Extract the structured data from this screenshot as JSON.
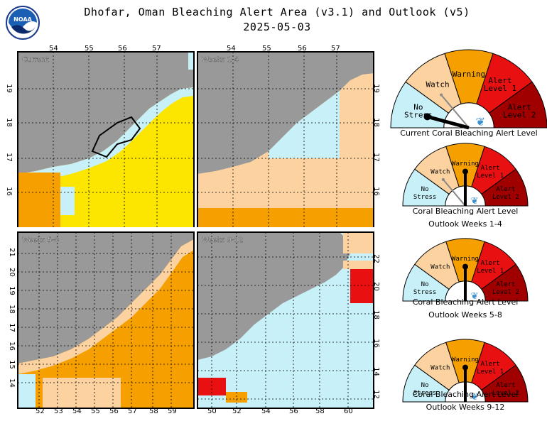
{
  "header": {
    "title": "Dhofar, Oman Bleaching Alert Area (v3.1) and Outlook (v5)",
    "date": "2025-05-03",
    "logo_text": "NOAA"
  },
  "colors": {
    "land": "#999999",
    "no_stress": "#c8f0f8",
    "watch": "#fcd3a0",
    "warning": "#f5a000",
    "alert1": "#e81010",
    "alert2": "#a00000",
    "yellow": "#fce600",
    "gray_gauge": "#888888"
  },
  "maps": [
    {
      "id": "current",
      "label": "Current",
      "top_ticks": [
        "54",
        "55",
        "56",
        "57"
      ],
      "side_ticks": [
        "19",
        "18",
        "17",
        "16"
      ]
    },
    {
      "id": "weeks-1-4",
      "label": "Weeks 1-4",
      "top_ticks": [
        "54",
        "55",
        "56",
        "57"
      ],
      "side_ticks": [
        "19",
        "18",
        "17",
        "16"
      ]
    },
    {
      "id": "weeks-5-8",
      "label": "Weeks 5-8",
      "bottom_ticks": [
        "52",
        "53",
        "54",
        "55",
        "56",
        "57",
        "58",
        "59"
      ],
      "side_ticks": [
        "21",
        "20",
        "19",
        "18",
        "17",
        "16",
        "15",
        "14"
      ]
    },
    {
      "id": "weeks-9-12",
      "label": "Weeks 9-12",
      "bottom_ticks": [
        "50",
        "52",
        "54",
        "56",
        "58",
        "60"
      ],
      "side_ticks": [
        "22",
        "20",
        "18",
        "16",
        "14",
        "12"
      ]
    }
  ],
  "gauges": [
    {
      "id": "current",
      "segments": [
        "No Stress",
        "Watch",
        "Warning",
        "Alert Level 1",
        "Alert Level 2"
      ],
      "caption1": "Current Coral Bleaching Alert Level",
      "caption2": ""
    },
    {
      "id": "outlook-1-4",
      "segments": [
        "No Stress",
        "Watch",
        "Warning",
        "Alert Level 1",
        "Alert Level 2"
      ],
      "caption1": "Coral Bleaching Alert Level",
      "caption2": "Outlook Weeks 1-4"
    },
    {
      "id": "outlook-5-8",
      "segments": [
        "No Stress",
        "Watch",
        "Warning",
        "Alert Level 1",
        "Alert Level 2"
      ],
      "caption1": "Coral Bleaching Alert Level",
      "caption2": "Outlook Weeks 5-8"
    },
    {
      "id": "outlook-9-12",
      "segments": [
        "No Stress",
        "Watch",
        "Warning",
        "Alert Level 1",
        "Alert Level 2"
      ],
      "caption1": "Coral Bleaching Alert Level",
      "caption2": "Outlook Weeks 9-12"
    }
  ],
  "needles": [
    {
      "primary": "No Stress",
      "secondary": "Watch"
    },
    {
      "primary": "Warning",
      "secondary": "Watch"
    },
    {
      "primary": "Warning",
      "secondary": null
    },
    {
      "primary": "Warning",
      "secondary": null
    }
  ]
}
